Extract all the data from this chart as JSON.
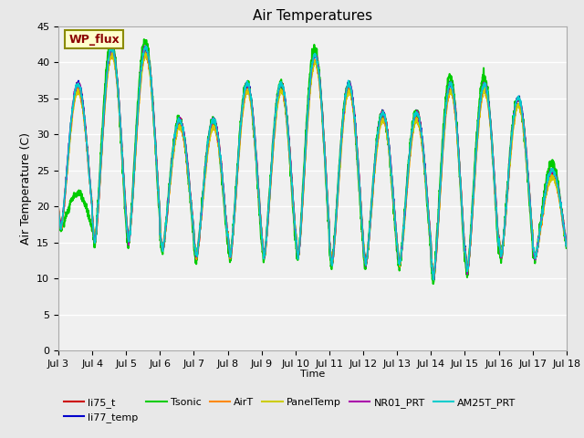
{
  "title": "Air Temperatures",
  "xlabel": "Time",
  "ylabel": "Air Temperature (C)",
  "ylim": [
    0,
    45
  ],
  "yticks": [
    0,
    5,
    10,
    15,
    20,
    25,
    30,
    35,
    40,
    45
  ],
  "x_labels": [
    "Jul 3",
    "Jul 4",
    "Jul 5",
    "Jul 6",
    "Jul 7",
    "Jul 8",
    "Jul 9",
    "Jul 10",
    "Jul 11",
    "Jul 12",
    "Jul 13",
    "Jul 14",
    "Jul 15",
    "Jul 16",
    "Jul 17",
    "Jul 18"
  ],
  "annotation_text": "WP_flux",
  "annotation_color": "#8B0000",
  "annotation_bg": "#FFFFCC",
  "annotation_border": "#8B8B00",
  "series": {
    "li75_t": {
      "color": "#CC0000",
      "lw": 1.2
    },
    "li77_temp": {
      "color": "#0000CC",
      "lw": 1.2
    },
    "Tsonic": {
      "color": "#00CC00",
      "lw": 1.5
    },
    "AirT": {
      "color": "#FF8800",
      "lw": 1.2
    },
    "PanelTemp": {
      "color": "#CCCC00",
      "lw": 1.2
    },
    "NR01_PRT": {
      "color": "#AA00AA",
      "lw": 1.2
    },
    "AM25T_PRT": {
      "color": "#00CCCC",
      "lw": 1.2
    }
  },
  "bg_color": "#E8E8E8",
  "plot_bg": "#F0F0F0",
  "grid_color": "white",
  "n_days": 15,
  "points_per_day": 144,
  "day_peaks": [
    37,
    42,
    42,
    32,
    32,
    37,
    37,
    41,
    37,
    33,
    33,
    37,
    37,
    35,
    25,
    25
  ],
  "tsonic_peaks": [
    22,
    43,
    43,
    32,
    32,
    37,
    37,
    42,
    37,
    33,
    33,
    38,
    38,
    35,
    26,
    26
  ],
  "day_mins": [
    17,
    15,
    15,
    14,
    13,
    13,
    13,
    13,
    12,
    12,
    12,
    10,
    11,
    13,
    13,
    14
  ]
}
